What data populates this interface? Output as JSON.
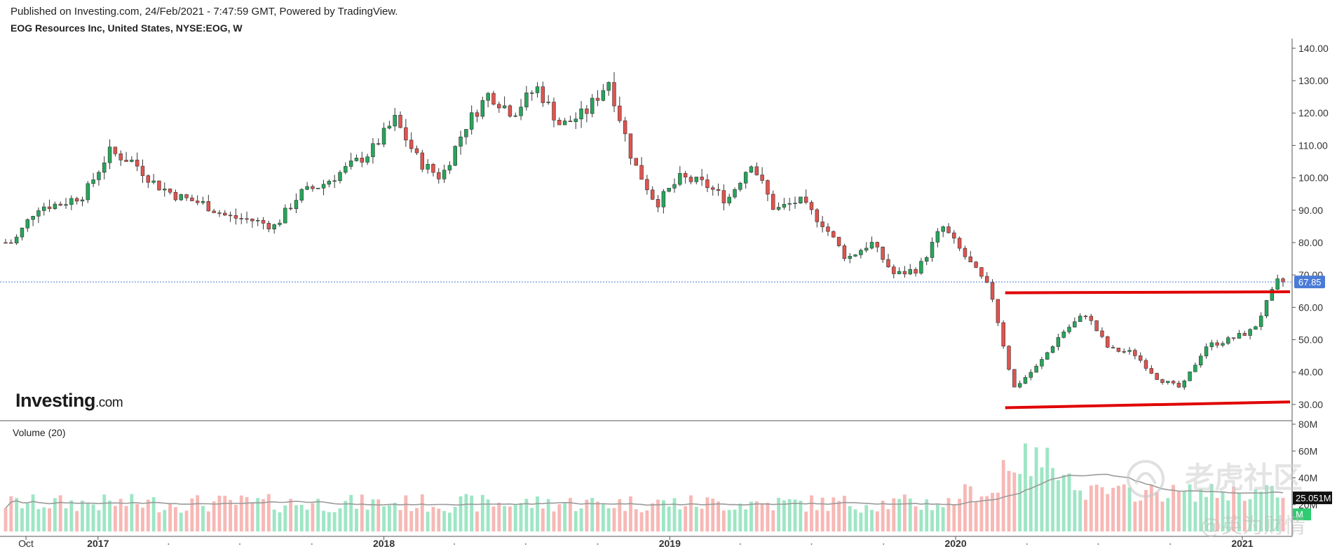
{
  "header": {
    "published": "Published on Investing.com, 24/Feb/2021 - 7:47:59 GMT, Powered by TradingView.",
    "symbol": "EOG Resources Inc, United States, NYSE:EOG, W"
  },
  "logo": {
    "brand": "Investing",
    "suffix": ".com"
  },
  "watermark": {
    "line1": "老虎社区",
    "line2": "@英为财情"
  },
  "colors": {
    "up": "#26a65b",
    "down": "#e0544f",
    "vol_up": "#9ee6c5",
    "vol_down": "#f7b8b5",
    "ma": "#9a9a9a",
    "resistance": "#e00000",
    "last_price_badge": "#4a7bd6"
  },
  "chart_data": [
    {
      "type": "candlestick",
      "interval": "W",
      "price_axis": {
        "ticks": [
          "140.00",
          "130.00",
          "120.00",
          "110.00",
          "100.00",
          "90.00",
          "80.00",
          "70.00",
          "60.00",
          "50.00",
          "40.00",
          "30.00"
        ],
        "range": [
          25,
          143
        ]
      },
      "time_axis": {
        "labels": [
          "Oct",
          "2017",
          "2018",
          "2019",
          "2020",
          "2021"
        ]
      },
      "last_price": "67.85",
      "anchors": [
        [
          "2016-09",
          80
        ],
        [
          "2016-10",
          91
        ],
        [
          "2016-11",
          92
        ],
        [
          "2016-12",
          95
        ],
        [
          "2017-01",
          108
        ],
        [
          "2017-02",
          105
        ],
        [
          "2017-03",
          98
        ],
        [
          "2017-04",
          94
        ],
        [
          "2017-05",
          92
        ],
        [
          "2017-06",
          88
        ],
        [
          "2017-07",
          87
        ],
        [
          "2017-08",
          85
        ],
        [
          "2017-09",
          95
        ],
        [
          "2017-10",
          98
        ],
        [
          "2017-11",
          103
        ],
        [
          "2017-12",
          108
        ],
        [
          "2018-01",
          118
        ],
        [
          "2018-02",
          105
        ],
        [
          "2018-03",
          100
        ],
        [
          "2018-04",
          116
        ],
        [
          "2018-05",
          126
        ],
        [
          "2018-06",
          120
        ],
        [
          "2018-07",
          128
        ],
        [
          "2018-08",
          116
        ],
        [
          "2018-09",
          120
        ],
        [
          "2018-10",
          130
        ],
        [
          "2018-11",
          105
        ],
        [
          "2018-12",
          92
        ],
        [
          "2019-01",
          100
        ],
        [
          "2019-02",
          98
        ],
        [
          "2019-03",
          93
        ],
        [
          "2019-04",
          105
        ],
        [
          "2019-05",
          90
        ],
        [
          "2019-06",
          93
        ],
        [
          "2019-07",
          86
        ],
        [
          "2019-08",
          75
        ],
        [
          "2019-09",
          80
        ],
        [
          "2019-10",
          70
        ],
        [
          "2019-11",
          72
        ],
        [
          "2019-12",
          85
        ],
        [
          "2020-01",
          75
        ],
        [
          "2020-02",
          65
        ],
        [
          "2020-03",
          35
        ],
        [
          "2020-04",
          42
        ],
        [
          "2020-05",
          52
        ],
        [
          "2020-06",
          58
        ],
        [
          "2020-07",
          47
        ],
        [
          "2020-08",
          46
        ],
        [
          "2020-09",
          38
        ],
        [
          "2020-10",
          35
        ],
        [
          "2020-11",
          48
        ],
        [
          "2020-12",
          50
        ],
        [
          "2021-01",
          53
        ],
        [
          "2021-02",
          67.85
        ]
      ],
      "resistance_line": {
        "from": [
          "2020-03",
          64.5
        ],
        "to": [
          "2021-02",
          64.8
        ]
      },
      "support_line": {
        "from": [
          "2020-03",
          29.0
        ],
        "to": [
          "2021-02",
          30.8
        ]
      }
    },
    {
      "type": "bar",
      "title": "Volume (20)",
      "axis": {
        "ticks": [
          "80M",
          "60M",
          "40M",
          "20M"
        ],
        "range": [
          0,
          80
        ]
      },
      "last_value": "25.051M",
      "average_badge": "M",
      "unit": "M"
    }
  ]
}
